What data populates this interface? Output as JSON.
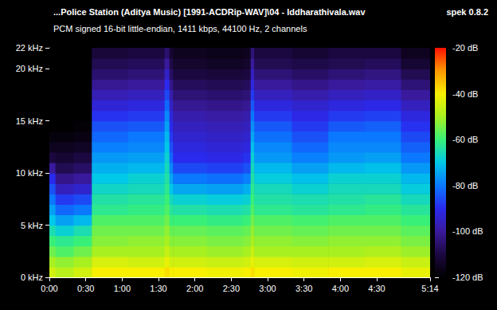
{
  "chart_data": {
    "type": "heatmap",
    "title": "...Police Station (Aditya Music) [1991-ACDRip-WAV]\\04 - Iddharathivala.wav",
    "subtitle": "PCM signed 16-bit little-endian, 1411 kbps, 44100 Hz, 2 channels",
    "annotations": [
      "spek 0.8.2"
    ],
    "xlim": [
      0,
      314
    ],
    "ylim": [
      0,
      22
    ],
    "xticks": [
      {
        "value": 0,
        "label": "0:00"
      },
      {
        "value": 30,
        "label": "0:30"
      },
      {
        "value": 60,
        "label": "1:00"
      },
      {
        "value": 90,
        "label": "1:30"
      },
      {
        "value": 120,
        "label": "2:00"
      },
      {
        "value": 150,
        "label": "2:30"
      },
      {
        "value": 180,
        "label": "3:00"
      },
      {
        "value": 210,
        "label": "3:30"
      },
      {
        "value": 240,
        "label": "4:00"
      },
      {
        "value": 270,
        "label": "4:30"
      },
      {
        "value": 314,
        "label": "5:14"
      }
    ],
    "yticks": [
      {
        "value": 0,
        "label": "0 kHz"
      },
      {
        "value": 5,
        "label": "5 kHz"
      },
      {
        "value": 10,
        "label": "10 kHz"
      },
      {
        "value": 15,
        "label": "15 kHz"
      },
      {
        "value": 20,
        "label": "20 kHz"
      },
      {
        "value": 22,
        "label": "22 kHz"
      }
    ],
    "time_bins": [
      0,
      5,
      20,
      35,
      65,
      95,
      99,
      102,
      130,
      160,
      166,
      169,
      200,
      230,
      260,
      290,
      314
    ],
    "freq_bins": [
      0,
      1,
      2,
      3,
      4,
      5,
      6,
      7,
      8,
      9,
      10,
      11,
      12,
      13,
      14,
      15,
      16,
      17,
      18,
      19,
      20,
      21,
      22
    ],
    "cells": [
      [
        -45,
        -50,
        -55,
        -60,
        -65,
        -70,
        -75,
        -80,
        -85,
        -90,
        -100,
        -110,
        -115,
        -118,
        -120,
        -120,
        -120,
        -120,
        -120,
        -120,
        -120,
        -120
      ],
      [
        -48,
        -52,
        -58,
        -62,
        -68,
        -75,
        -82,
        -88,
        -96,
        -102,
        -108,
        -112,
        -115,
        -118,
        -120,
        -120,
        -120,
        -120,
        -120,
        -120,
        -120,
        -120
      ],
      [
        -45,
        -50,
        -55,
        -60,
        -65,
        -72,
        -80,
        -86,
        -94,
        -100,
        -106,
        -110,
        -114,
        -117,
        -119,
        -120,
        -120,
        -120,
        -120,
        -120,
        -120,
        -120
      ],
      [
        -40,
        -44,
        -50,
        -53,
        -55,
        -58,
        -62,
        -64,
        -67,
        -70,
        -73,
        -76,
        -79,
        -82,
        -85,
        -89,
        -93,
        -97,
        -101,
        -105,
        -108,
        -111
      ],
      [
        -40,
        -45,
        -50,
        -52,
        -55,
        -58,
        -61,
        -63,
        -66,
        -68,
        -72,
        -75,
        -78,
        -80,
        -84,
        -88,
        -92,
        -96,
        -100,
        -104,
        -107,
        -110
      ],
      [
        -38,
        -42,
        -46,
        -50,
        -52,
        -55,
        -58,
        -60,
        -62,
        -64,
        -66,
        -68,
        -70,
        -72,
        -75,
        -78,
        -82,
        -86,
        -90,
        -95,
        -100,
        -105
      ],
      [
        -40,
        -45,
        -50,
        -53,
        -56,
        -60,
        -63,
        -66,
        -70,
        -74,
        -78,
        -82,
        -85,
        -88,
        -90,
        -92,
        -95,
        -98,
        -102,
        -106,
        -109,
        -112
      ],
      [
        -40,
        -45,
        -50,
        -53,
        -56,
        -60,
        -64,
        -68,
        -74,
        -80,
        -86,
        -90,
        -92,
        -94,
        -96,
        -98,
        -101,
        -104,
        -107,
        -110,
        -113,
        -115
      ],
      [
        -41,
        -46,
        -51,
        -54,
        -57,
        -61,
        -65,
        -69,
        -75,
        -81,
        -87,
        -91,
        -93,
        -95,
        -97,
        -99,
        -102,
        -105,
        -108,
        -111,
        -114,
        -116
      ],
      [
        -40,
        -45,
        -50,
        -53,
        -56,
        -60,
        -64,
        -68,
        -73,
        -79,
        -85,
        -89,
        -92,
        -94,
        -96,
        -98,
        -101,
        -104,
        -107,
        -110,
        -113,
        -115
      ],
      [
        -38,
        -42,
        -46,
        -50,
        -52,
        -55,
        -58,
        -60,
        -62,
        -64,
        -66,
        -68,
        -71,
        -74,
        -77,
        -80,
        -84,
        -88,
        -92,
        -96,
        -100,
        -104
      ],
      [
        -40,
        -44,
        -50,
        -52,
        -55,
        -58,
        -62,
        -64,
        -66,
        -69,
        -72,
        -76,
        -78,
        -81,
        -84,
        -88,
        -92,
        -96,
        -100,
        -104,
        -108,
        -110
      ],
      [
        -41,
        -45,
        -50,
        -53,
        -56,
        -59,
        -63,
        -65,
        -68,
        -71,
        -75,
        -79,
        -82,
        -85,
        -88,
        -91,
        -94,
        -98,
        -102,
        -106,
        -109,
        -112
      ],
      [
        -40,
        -45,
        -50,
        -52,
        -55,
        -58,
        -62,
        -64,
        -66,
        -68,
        -72,
        -76,
        -78,
        -80,
        -84,
        -88,
        -92,
        -96,
        -100,
        -104,
        -108,
        -110
      ],
      [
        -40,
        -44,
        -49,
        -52,
        -55,
        -58,
        -61,
        -63,
        -66,
        -68,
        -71,
        -75,
        -78,
        -80,
        -83,
        -87,
        -91,
        -95,
        -99,
        -103,
        -107,
        -110
      ],
      [
        -42,
        -46,
        -51,
        -54,
        -57,
        -60,
        -63,
        -66,
        -69,
        -72,
        -76,
        -80,
        -83,
        -86,
        -89,
        -92,
        -96,
        -100,
        -104,
        -108,
        -112,
        -115
      ]
    ],
    "colorbar": {
      "range": [
        -120,
        -20
      ],
      "ticks": [
        {
          "value": -20,
          "label": "-20 dB"
        },
        {
          "value": -40,
          "label": "-40 dB"
        },
        {
          "value": -60,
          "label": "-60 dB"
        },
        {
          "value": -80,
          "label": "-80 dB"
        },
        {
          "value": -100,
          "label": "-100 dB"
        },
        {
          "value": -120,
          "label": "-120 dB"
        }
      ]
    }
  }
}
